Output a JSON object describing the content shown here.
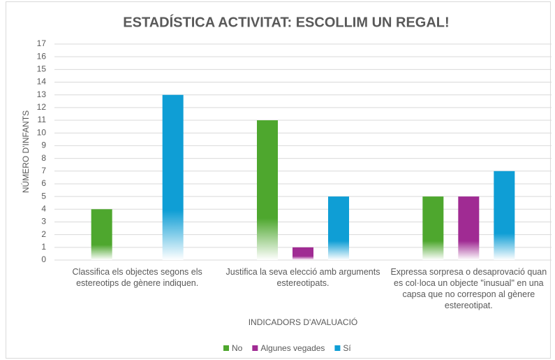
{
  "chart_data": {
    "type": "bar",
    "title": "ESTADÍSTICA ACTIVITAT: ESCOLLIM UN REGAL!",
    "x_label": "INDICADORS D'AVALUACIÓ",
    "y_label": "NÚMERO D'INFANTS",
    "categories": [
      "Classifica els objectes segons els estereotips de gènere indiquen.",
      "Justifica la seva elecció amb arguments estereotipats.",
      "Expressa sorpresa o desaprovació quan es col·loca un objecte \"inusual\" en una capsa que no correspon al gènere estereotipat."
    ],
    "series": [
      {
        "name": "No",
        "color": "#4ea72e",
        "values": [
          4,
          11,
          5
        ]
      },
      {
        "name": "Algunes vegades",
        "color": "#a02b93",
        "values": [
          0,
          1,
          5
        ]
      },
      {
        "name": "Sí",
        "color": "#0f9ed5",
        "values": [
          13,
          5,
          7
        ]
      }
    ],
    "ylim": [
      0,
      17
    ],
    "yticks": [
      0,
      1,
      2,
      3,
      4,
      5,
      6,
      7,
      8,
      9,
      10,
      11,
      12,
      13,
      14,
      15,
      16,
      17
    ],
    "grid": true,
    "legend": "bottom"
  }
}
